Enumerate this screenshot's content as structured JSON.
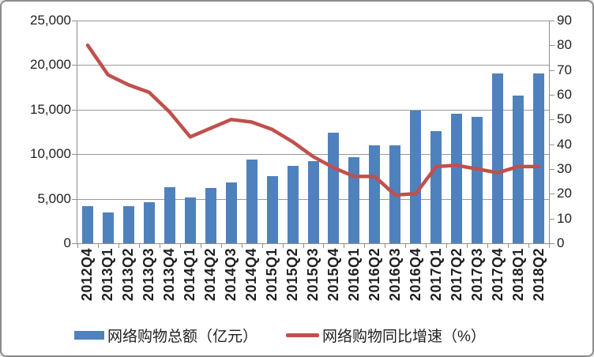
{
  "chart_data": {
    "type": "bar",
    "subtype": "bar+line combo, dual axis",
    "categories": [
      "2012Q4",
      "2013Q1",
      "2013Q2",
      "2013Q3",
      "2013Q4",
      "2014Q1",
      "2014Q2",
      "2014Q3",
      "2014Q4",
      "2015Q1",
      "2015Q2",
      "2015Q3",
      "2015Q4",
      "2016Q1",
      "2016Q2",
      "2016Q3",
      "2016Q4",
      "2017Q1",
      "2017Q2",
      "2017Q3",
      "2017Q4",
      "2018Q1",
      "2018Q2"
    ],
    "series": [
      {
        "name": "网络购物总额（亿元）",
        "type": "bar",
        "axis": "left",
        "color": "#4F81BD",
        "values": [
          4200,
          3500,
          4200,
          4600,
          6300,
          5100,
          6200,
          6800,
          9400,
          7500,
          8700,
          9200,
          12400,
          9700,
          11000,
          11000,
          14900,
          12600,
          14500,
          14200,
          19100,
          16600,
          19100
        ]
      },
      {
        "name": "网络购物同比增速（%）",
        "type": "line",
        "axis": "right",
        "color": "#C0504D",
        "values": [
          80,
          68,
          64,
          61,
          53,
          43,
          46.5,
          50,
          49,
          46,
          41,
          35,
          30.5,
          27,
          27,
          19.5,
          20,
          31,
          31.5,
          30,
          28.5,
          31,
          31
        ]
      }
    ],
    "left_axis": {
      "min": 0,
      "max": 25000,
      "step": 5000,
      "tick_labels": [
        "0",
        "5,000",
        "10,000",
        "15,000",
        "20,000",
        "25,000"
      ]
    },
    "right_axis": {
      "min": 0,
      "max": 90,
      "step": 10,
      "tick_labels": [
        "0",
        "10",
        "20",
        "30",
        "40",
        "50",
        "60",
        "70",
        "80",
        "90"
      ]
    },
    "grid": true,
    "gridline_color": "#999999",
    "legend_position": "bottom",
    "title": ""
  }
}
